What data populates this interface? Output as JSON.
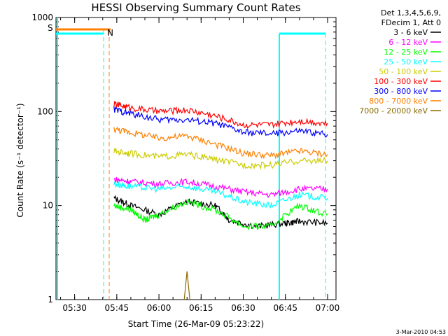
{
  "chart_data": {
    "type": "line",
    "title": "HESSI Observing Summary Count Rates",
    "xlabel": "Start Time (26-Mar-09 05:23:22)",
    "ylabel": "Count Rate (s⁻¹ detector⁻¹)",
    "y_scale": "log",
    "ylim": [
      1,
      1000
    ],
    "xlim": [
      "05:23:22",
      "07:03:00"
    ],
    "x_ticks": [
      "05:30",
      "05:45",
      "06:00",
      "06:15",
      "06:30",
      "06:45",
      "07:00"
    ],
    "y_ticks": [
      "1",
      "10",
      "100",
      "1000"
    ],
    "legend_header": [
      "Det 1,3,4,5,6,9,",
      "FDecim 1, Att 0"
    ],
    "series": [
      {
        "name": "3 - 6 keV",
        "color": "#000000",
        "x": [
          "05:44",
          "05:50",
          "06:00",
          "06:10",
          "06:20",
          "06:25",
          "06:35",
          "06:45",
          "06:50",
          "07:00"
        ],
        "y": [
          12,
          10,
          8,
          11,
          10,
          7,
          6,
          6.5,
          6.8,
          6.5
        ]
      },
      {
        "name": "6 - 12 keV",
        "color": "#ff00ff",
        "x": [
          "05:44",
          "05:50",
          "06:00",
          "06:10",
          "06:20",
          "06:30",
          "06:40",
          "06:50",
          "07:00"
        ],
        "y": [
          19,
          18,
          17,
          18,
          16,
          14,
          13,
          15,
          15
        ]
      },
      {
        "name": "12 - 25 keV",
        "color": "#00ff00",
        "x": [
          "05:44",
          "05:50",
          "05:55",
          "06:00",
          "06:10",
          "06:20",
          "06:30",
          "06:40",
          "06:50",
          "07:00"
        ],
        "y": [
          10,
          9,
          7,
          8,
          11,
          9,
          6,
          6,
          10,
          8
        ]
      },
      {
        "name": "25 - 50 keV",
        "color": "#00ffff",
        "x": [
          "05:44",
          "05:50",
          "06:00",
          "06:10",
          "06:20",
          "06:30",
          "06:40",
          "06:50",
          "07:00"
        ],
        "y": [
          17,
          16,
          15,
          16,
          14,
          11,
          10,
          13,
          12
        ]
      },
      {
        "name": "50 - 100 keV",
        "color": "#cccc00",
        "x": [
          "05:44",
          "05:50",
          "06:00",
          "06:10",
          "06:20",
          "06:30",
          "06:40",
          "06:50",
          "07:00"
        ],
        "y": [
          38,
          36,
          33,
          35,
          31,
          27,
          27,
          30,
          30
        ]
      },
      {
        "name": "100 - 300 keV",
        "color": "#ff0000",
        "x": [
          "05:44",
          "05:50",
          "06:00",
          "06:10",
          "06:20",
          "06:30",
          "06:40",
          "06:50",
          "07:00"
        ],
        "y": [
          120,
          110,
          100,
          104,
          90,
          72,
          72,
          80,
          75
        ]
      },
      {
        "name": "300 - 800 keV",
        "color": "#0000ff",
        "x": [
          "05:44",
          "05:50",
          "06:00",
          "06:10",
          "06:20",
          "06:30",
          "06:40",
          "06:50",
          "07:00"
        ],
        "y": [
          105,
          95,
          82,
          82,
          75,
          60,
          58,
          62,
          57
        ]
      },
      {
        "name": "800 - 7000 keV",
        "color": "#ff8000",
        "x": [
          "05:44",
          "05:50",
          "06:00",
          "06:10",
          "06:20",
          "06:30",
          "06:40",
          "06:50",
          "07:00"
        ],
        "y": [
          65,
          60,
          52,
          55,
          45,
          36,
          34,
          38,
          35
        ]
      },
      {
        "name": "7000 - 20000 keV",
        "color": "#8b6b00",
        "x": [
          "06:09",
          "06:10",
          "06:11"
        ],
        "y": [
          1,
          2,
          1
        ]
      }
    ],
    "annotations": [
      "S",
      "N"
    ],
    "footer_timestamp": "3-Mar-2010 04:53"
  }
}
